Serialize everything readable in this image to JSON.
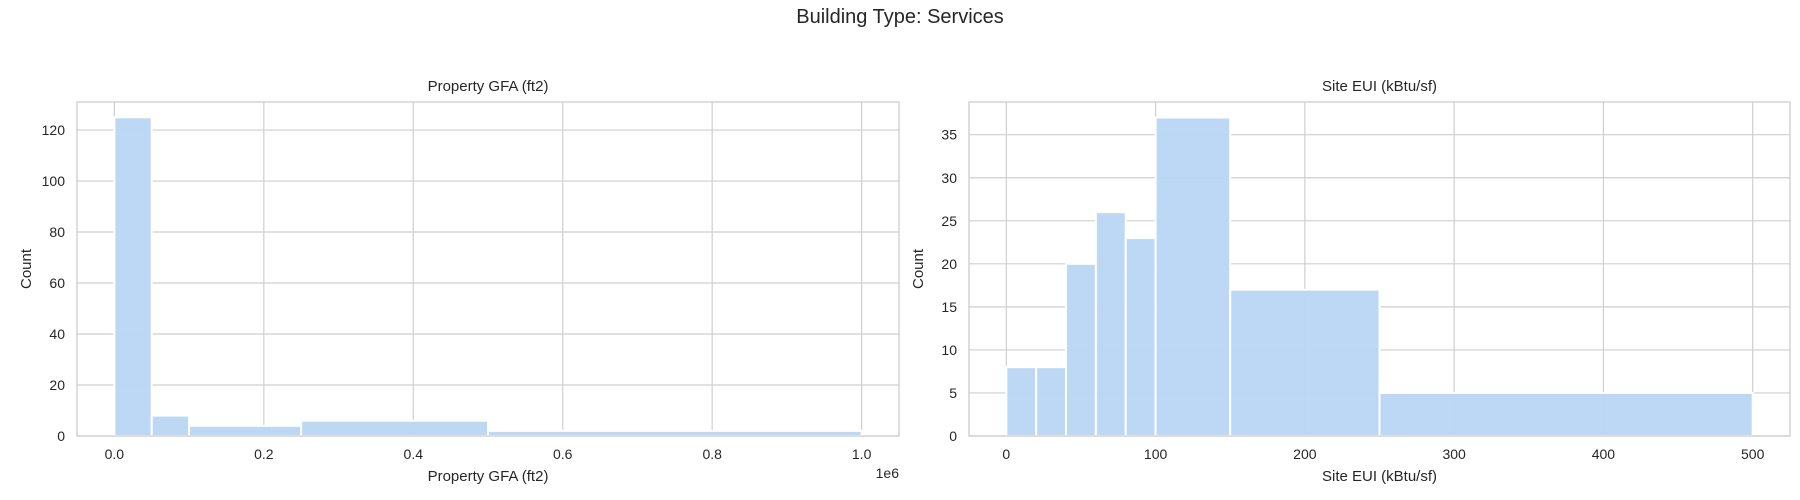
{
  "suptitle": "Building Type: Services",
  "colors": {
    "bar": "#b9d6f4",
    "grid": "#cfcfcf",
    "frame": "#cccccc",
    "text": "#262626"
  },
  "chart_data": [
    {
      "type": "bar",
      "title": "Property GFA (ft2)",
      "xlabel": "Property GFA (ft2)",
      "ylabel": "Count",
      "offset_label": "1e6",
      "xlim": [
        -0.05,
        1.05
      ],
      "ylim": [
        0,
        131
      ],
      "xticks": [
        0.0,
        0.2,
        0.4,
        0.6,
        0.8,
        1.0
      ],
      "xtick_labels": [
        "0.0",
        "0.2",
        "0.4",
        "0.6",
        "0.8",
        "1.0"
      ],
      "yticks": [
        0,
        20,
        40,
        60,
        80,
        100,
        120
      ],
      "bins": [
        {
          "x0": 0.0,
          "x1": 0.05,
          "value": 125
        },
        {
          "x0": 0.05,
          "x1": 0.1,
          "value": 8
        },
        {
          "x0": 0.1,
          "x1": 0.25,
          "value": 4
        },
        {
          "x0": 0.25,
          "x1": 0.5,
          "value": 6
        },
        {
          "x0": 0.5,
          "x1": 1.0,
          "value": 2
        }
      ],
      "grid": true
    },
    {
      "type": "bar",
      "title": "Site EUI (kBtu/sf)",
      "xlabel": "Site EUI (kBtu/sf)",
      "ylabel": "Count",
      "xlim": [
        -25,
        525
      ],
      "ylim": [
        0,
        38.8
      ],
      "xticks": [
        0,
        100,
        200,
        300,
        400,
        500
      ],
      "xtick_labels": [
        "0",
        "100",
        "200",
        "300",
        "400",
        "500"
      ],
      "yticks": [
        0,
        5,
        10,
        15,
        20,
        25,
        30,
        35
      ],
      "bins": [
        {
          "x0": 0,
          "x1": 20,
          "value": 8
        },
        {
          "x0": 20,
          "x1": 40,
          "value": 8
        },
        {
          "x0": 40,
          "x1": 60,
          "value": 20
        },
        {
          "x0": 60,
          "x1": 80,
          "value": 26
        },
        {
          "x0": 80,
          "x1": 100,
          "value": 23
        },
        {
          "x0": 100,
          "x1": 150,
          "value": 37
        },
        {
          "x0": 150,
          "x1": 250,
          "value": 17
        },
        {
          "x0": 250,
          "x1": 500,
          "value": 5
        }
      ],
      "grid": true
    }
  ]
}
